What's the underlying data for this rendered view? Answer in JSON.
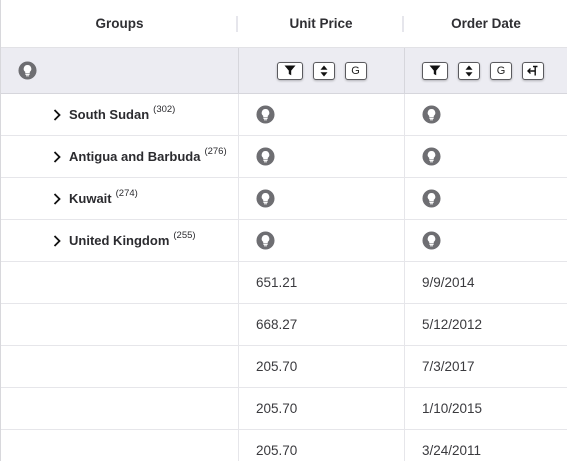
{
  "header": {
    "col_groups": "Groups",
    "col_unit_price": "Unit Price",
    "col_order_date": "Order Date"
  },
  "toolbar": {
    "g_label": "G"
  },
  "groups": [
    {
      "name": "South Sudan",
      "count": "(302)"
    },
    {
      "name": "Antigua and Barbuda",
      "count": "(276)"
    },
    {
      "name": "Kuwait",
      "count": "(274)"
    },
    {
      "name": "United Kingdom",
      "count": "(255)"
    }
  ],
  "rows": [
    {
      "unit_price": "651.21",
      "order_date": "9/9/2014"
    },
    {
      "unit_price": "668.27",
      "order_date": "5/12/2012"
    },
    {
      "unit_price": "205.70",
      "order_date": "7/3/2017"
    },
    {
      "unit_price": "205.70",
      "order_date": "1/10/2015"
    },
    {
      "unit_price": "205.70",
      "order_date": "3/24/2011"
    }
  ],
  "icons": {
    "bulb": "lightbulb-icon",
    "filter": "filter-icon",
    "sort": "sort-icon",
    "group": "group-icon",
    "pin": "pin-icon",
    "chevron": "chevron-right-icon"
  },
  "colors": {
    "bulb_fill": "#6e6e72",
    "filter_row_bg": "#ececf2"
  }
}
